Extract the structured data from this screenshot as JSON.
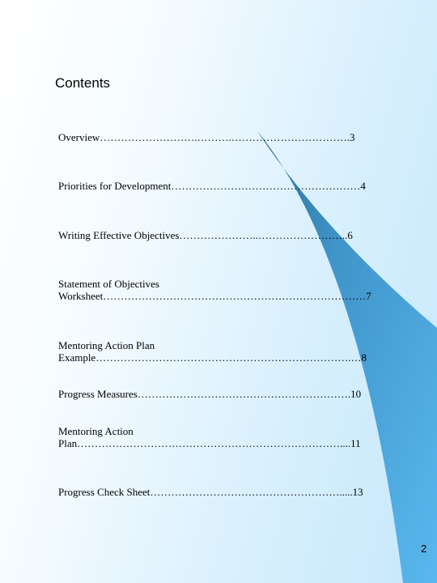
{
  "heading": "Contents",
  "entries": [
    {
      "line1": "Overview……………………….……….…………………………….3"
    },
    {
      "line1": "Priorities for Development………………………………………………4"
    },
    {
      "line1": "Writing Effective Objectives…………………..……………………..6"
    },
    {
      "line1": "Statement of Objectives",
      "line2": "Worksheet…………………………………………………………………7"
    },
    {
      "line1": "Mentoring Action Plan",
      "line2": "Example……………………………………………………………….…8"
    },
    {
      "line1": "Progress Measures…………………………………………………….10"
    },
    {
      "line1": "Mentoring Action",
      "line2": "Plan…………………………………………………………………....11"
    },
    {
      "line1": "Progress Check Sheet……………………………………………….....13"
    }
  ],
  "page_number": "2",
  "colors": {
    "swoosh_dark": "#2f6f93",
    "swoosh_light": "#5ab8ee",
    "background": "#cfeafb"
  }
}
